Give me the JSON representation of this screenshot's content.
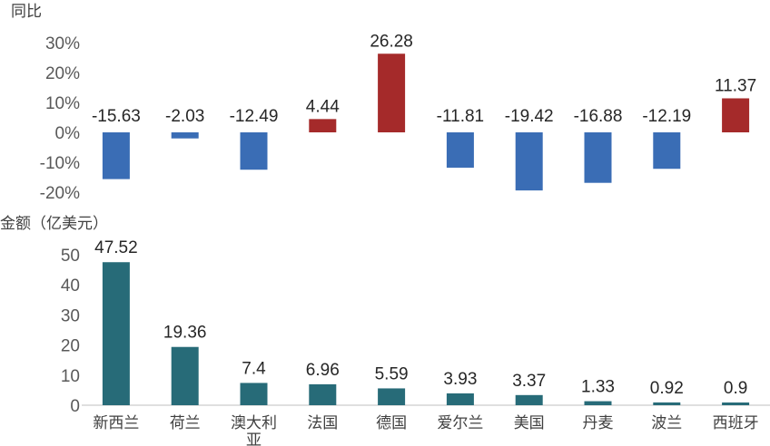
{
  "chart_data": [
    {
      "type": "bar",
      "ylabel": "同比",
      "categories": [
        "新西兰",
        "荷兰",
        "澳大利亚",
        "法国",
        "德国",
        "爱尔兰",
        "美国",
        "丹麦",
        "波兰",
        "西班牙"
      ],
      "values": [
        -15.63,
        -2.03,
        -12.49,
        4.44,
        26.28,
        -11.81,
        -19.42,
        -16.88,
        -12.19,
        11.37
      ],
      "value_labels": [
        "-15.63",
        "-2.03",
        "-12.49",
        "4.44",
        "26.28",
        "-11.81",
        "-19.42",
        "-16.88",
        "-12.19",
        "11.37"
      ],
      "yticks": [
        "30%",
        "20%",
        "10%",
        "0%",
        "-10%",
        "-20%"
      ],
      "ylim": [
        -20,
        30
      ],
      "colors": {
        "positive": "#a52a2a",
        "negative": "#3a6db5"
      },
      "grid": false
    },
    {
      "type": "bar",
      "ylabel": "金额（亿美元）",
      "categories": [
        "新西兰",
        "荷兰",
        "澳大利亚",
        "法国",
        "德国",
        "爱尔兰",
        "美国",
        "丹麦",
        "波兰",
        "西班牙"
      ],
      "category_lines": [
        [
          "新西兰"
        ],
        [
          "荷兰"
        ],
        [
          "澳大利",
          "亚"
        ],
        [
          "法国"
        ],
        [
          "德国"
        ],
        [
          "爱尔兰"
        ],
        [
          "美国"
        ],
        [
          "丹麦"
        ],
        [
          "波兰"
        ],
        [
          "西班牙"
        ]
      ],
      "values": [
        47.52,
        19.36,
        7.4,
        6.96,
        5.59,
        3.93,
        3.37,
        1.33,
        0.92,
        0.9
      ],
      "value_labels": [
        "47.52",
        "19.36",
        "7.4",
        "6.96",
        "5.59",
        "3.93",
        "3.37",
        "1.33",
        "0.92",
        "0.9"
      ],
      "yticks": [
        "50",
        "40",
        "30",
        "20",
        "10",
        "0"
      ],
      "ylim": [
        0,
        50
      ],
      "colors": {
        "bar": "#276b78"
      },
      "grid": false
    }
  ]
}
